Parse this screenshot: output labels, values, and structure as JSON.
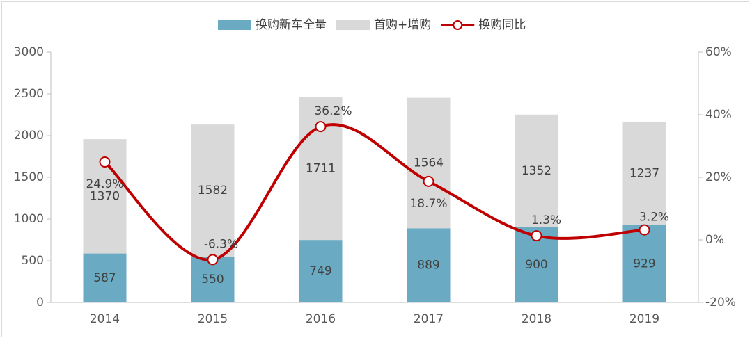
{
  "chart_data": {
    "type": "bar",
    "stacked": true,
    "categories": [
      "2014",
      "2015",
      "2016",
      "2017",
      "2018",
      "2019"
    ],
    "series": [
      {
        "name": "换购新车全量",
        "kind": "bar",
        "axis": "left",
        "color": "#6aaac3",
        "values": [
          587,
          550,
          749,
          889,
          900,
          929
        ]
      },
      {
        "name": "首购+增购",
        "kind": "bar",
        "axis": "left",
        "color": "#d9d9d9",
        "values": [
          1370,
          1582,
          1711,
          1564,
          1352,
          1237
        ]
      },
      {
        "name": "换购同比",
        "kind": "line",
        "axis": "right",
        "color": "#c00000",
        "values": [
          24.9,
          -6.3,
          36.2,
          18.7,
          1.3,
          3.2
        ],
        "labels": [
          "24.9%",
          "-6.3%",
          "36.2%",
          "18.7%",
          "1.3%",
          "3.2%"
        ]
      }
    ],
    "ylim_left": [
      0,
      3000
    ],
    "yticks_left": [
      "0",
      "500",
      "1000",
      "1500",
      "2000",
      "2500",
      "3000"
    ],
    "ylim_right": [
      -20,
      60
    ],
    "yticks_right": [
      "-20%",
      "0%",
      "20%",
      "40%",
      "60%"
    ],
    "legend_position": "top",
    "grid": false
  }
}
